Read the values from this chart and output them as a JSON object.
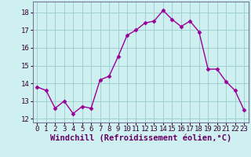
{
  "x": [
    0,
    1,
    2,
    3,
    4,
    5,
    6,
    7,
    8,
    9,
    10,
    11,
    12,
    13,
    14,
    15,
    16,
    17,
    18,
    19,
    20,
    21,
    22,
    23
  ],
  "y": [
    13.8,
    13.6,
    12.6,
    13.0,
    12.3,
    12.7,
    12.6,
    14.2,
    14.4,
    15.5,
    16.7,
    17.0,
    17.4,
    17.5,
    18.1,
    17.6,
    17.2,
    17.5,
    16.9,
    14.8,
    14.8,
    14.1,
    13.6,
    12.5
  ],
  "line_color": "#990099",
  "marker": "D",
  "marker_size": 2.5,
  "bg_color": "#cff0f0",
  "grid_color": "#99cccc",
  "xlabel": "Windchill (Refroidissement éolien,°C)",
  "xlabel_fontsize": 7.5,
  "ylim": [
    11.8,
    18.6
  ],
  "xlim": [
    -0.5,
    23.5
  ],
  "yticks": [
    12,
    13,
    14,
    15,
    16,
    17,
    18
  ],
  "xticks": [
    0,
    1,
    2,
    3,
    4,
    5,
    6,
    7,
    8,
    9,
    10,
    11,
    12,
    13,
    14,
    15,
    16,
    17,
    18,
    19,
    20,
    21,
    22,
    23
  ],
  "tick_fontsize": 6.5,
  "line_width": 1.0,
  "spine_color": "#777799",
  "xlabel_color": "#660066"
}
